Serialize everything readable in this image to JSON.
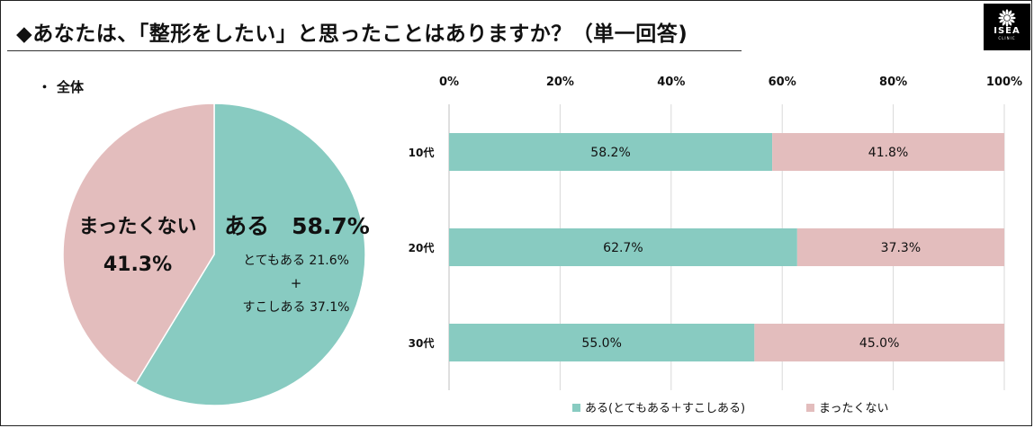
{
  "title": "◆あなたは、「整形をしたい」と思ったことはありますか？（単一回答)",
  "logo": {
    "name": "ISEA",
    "sub": "CLINIC"
  },
  "section_label": "全体",
  "colors": {
    "aru": "#88cbc1",
    "mattaku": "#e3bdbd",
    "grid": "#d9d9d9"
  },
  "chart_data": [
    {
      "type": "pie",
      "labels": [
        "ある",
        "まったくない"
      ],
      "values": [
        58.7,
        41.3
      ],
      "slice_labels": {
        "aru": "ある　58.7%",
        "mattaku_name": "まったくない",
        "mattaku_value": "41.3%"
      },
      "breakdown": [
        {
          "label": "とてもある",
          "value": 21.6,
          "text": "とてもある 21.6%"
        },
        {
          "label": "すこしある",
          "value": 37.1,
          "text": "すこしある 37.1%"
        }
      ],
      "breakdown_plus": "+"
    },
    {
      "type": "bar",
      "orientation": "horizontal",
      "stacked": true,
      "percent": true,
      "categories": [
        "10代",
        "20代",
        "30代"
      ],
      "series": [
        {
          "name": "ある(とてもある＋すこしある)",
          "values": [
            58.2,
            62.7,
            55.0
          ],
          "labels": [
            "58.2%",
            "62.7%",
            "55.0%"
          ]
        },
        {
          "name": "まったくない",
          "values": [
            41.8,
            37.3,
            45.0
          ],
          "labels": [
            "41.8%",
            "37.3%",
            "45.0%"
          ]
        }
      ],
      "xlim": [
        0,
        100
      ],
      "xticks": [
        "0%",
        "20%",
        "40%",
        "60%",
        "80%",
        "100%"
      ],
      "grid": true,
      "legend_position": "bottom"
    }
  ]
}
